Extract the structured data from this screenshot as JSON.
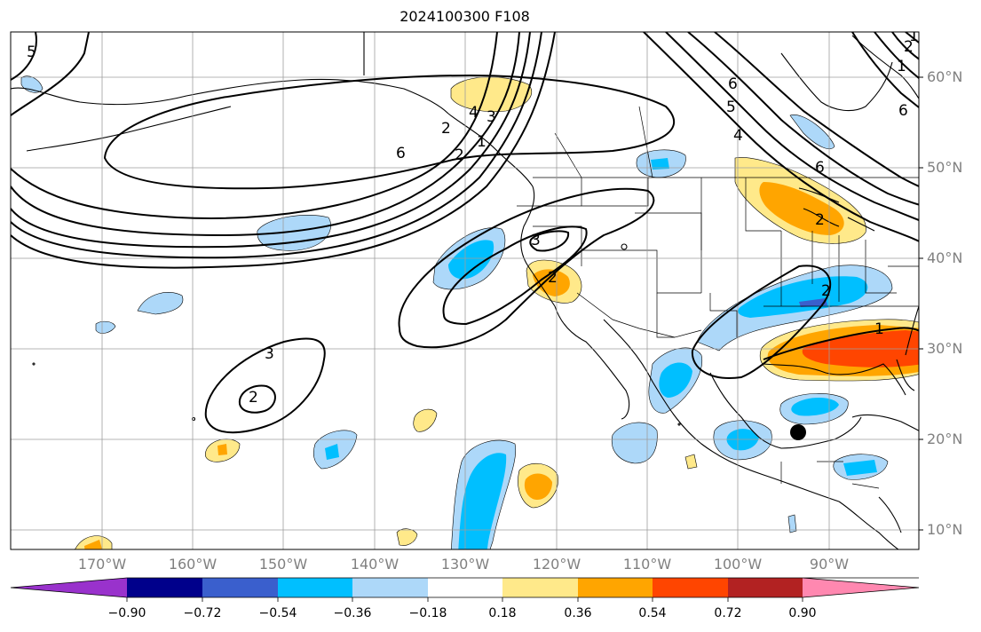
{
  "title": "2024100300 F108",
  "lat_labels": [
    "60°N",
    "50°N",
    "40°N",
    "30°N",
    "20°N",
    "10°N"
  ],
  "lon_labels": [
    "170°W",
    "160°W",
    "150°W",
    "140°W",
    "130°W",
    "120°W",
    "110°W",
    "100°W",
    "90°W"
  ],
  "colorbar": {
    "ticks": [
      "−0.90",
      "−0.72",
      "−0.54",
      "−0.36",
      "−0.18",
      "0.18",
      "0.36",
      "0.54",
      "0.72",
      "0.90"
    ],
    "colors": [
      "#9932cc",
      "#00008b",
      "#3a5fcd",
      "#00bfff",
      "#add8f9",
      "#ffffff",
      "#ffe98a",
      "#ffa500",
      "#ff4500",
      "#b22222",
      "#ff88b0"
    ]
  },
  "contour_labels": [
    "5",
    "6",
    "2",
    "4",
    "3",
    "2",
    "1",
    "6",
    "5",
    "4",
    "3",
    "2",
    "3",
    "2",
    "1",
    "2",
    "6",
    "2",
    "1",
    "2",
    "1",
    "6"
  ],
  "marker": "storm-center"
}
